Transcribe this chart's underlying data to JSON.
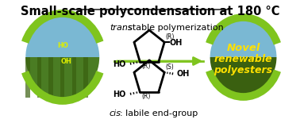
{
  "title": "Small-scale polycondensation at 180 °C",
  "title_fontsize": 10.5,
  "title_underline": true,
  "trans_label": "trans",
  "trans_rest": ": stable polymerization",
  "cis_label": "cis",
  "cis_rest": ": labile end-group",
  "novel_line1": "Novel",
  "novel_line2": "renewable",
  "novel_line3": "polyesters",
  "novel_color": "#ffe000",
  "novel_fontsize": 9.5,
  "arrow_color": "#7fc41e",
  "background_color": "#ffffff",
  "text_color": "#000000",
  "R_label": "(R)",
  "S_label": "(S)",
  "OH_label": "OH",
  "HO_label": "HO"
}
